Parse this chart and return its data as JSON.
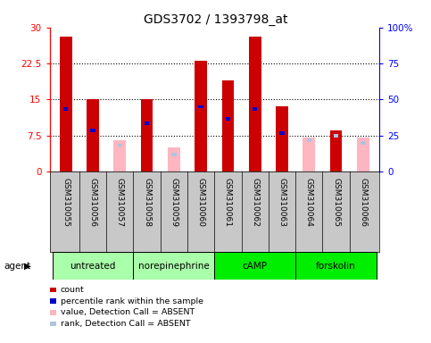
{
  "title": "GDS3702 / 1393798_at",
  "samples": [
    "GSM310055",
    "GSM310056",
    "GSM310057",
    "GSM310058",
    "GSM310059",
    "GSM310060",
    "GSM310061",
    "GSM310062",
    "GSM310063",
    "GSM310064",
    "GSM310065",
    "GSM310066"
  ],
  "count_values": [
    28.0,
    15.0,
    null,
    15.0,
    null,
    23.0,
    19.0,
    28.0,
    13.5,
    null,
    8.5,
    null
  ],
  "count_absent_values": [
    null,
    null,
    6.5,
    null,
    5.0,
    null,
    null,
    null,
    null,
    7.0,
    null,
    7.0
  ],
  "percentile_values": [
    13.0,
    8.5,
    null,
    10.0,
    null,
    13.5,
    11.0,
    13.0,
    8.0,
    null,
    7.5,
    null
  ],
  "percentile_absent_values": [
    null,
    null,
    5.5,
    null,
    3.5,
    null,
    null,
    null,
    null,
    6.5,
    7.5,
    6.0
  ],
  "agents": [
    {
      "label": "untreated",
      "start": 0,
      "end": 3,
      "color": "#AAFFAA"
    },
    {
      "label": "norepinephrine",
      "start": 3,
      "end": 6,
      "color": "#AAFFAA"
    },
    {
      "label": "cAMP",
      "start": 6,
      "end": 9,
      "color": "#00EE00"
    },
    {
      "label": "forskolin",
      "start": 9,
      "end": 12,
      "color": "#00EE00"
    }
  ],
  "ylim": [
    0,
    30
  ],
  "yticks": [
    0,
    7.5,
    15,
    22.5,
    30
  ],
  "ytick_labels": [
    "0",
    "7.5",
    "15",
    "22.5",
    "30"
  ],
  "y2ticks": [
    0,
    25,
    50,
    75,
    100
  ],
  "y2tick_labels": [
    "0",
    "25",
    "50",
    "75",
    "100%"
  ],
  "count_color": "#CC0000",
  "count_absent_color": "#FFB6C1",
  "percentile_color": "#0000CC",
  "percentile_absent_color": "#B0C4DE",
  "bar_width": 0.45,
  "pct_bar_width": 0.18,
  "pct_bar_height": 0.7,
  "label_bg_color": "#C8C8C8",
  "legend_items": [
    {
      "color": "#CC0000",
      "label": "count"
    },
    {
      "color": "#0000CC",
      "label": "percentile rank within the sample"
    },
    {
      "color": "#FFB6C1",
      "label": "value, Detection Call = ABSENT"
    },
    {
      "color": "#B0C4DE",
      "label": "rank, Detection Call = ABSENT"
    }
  ]
}
